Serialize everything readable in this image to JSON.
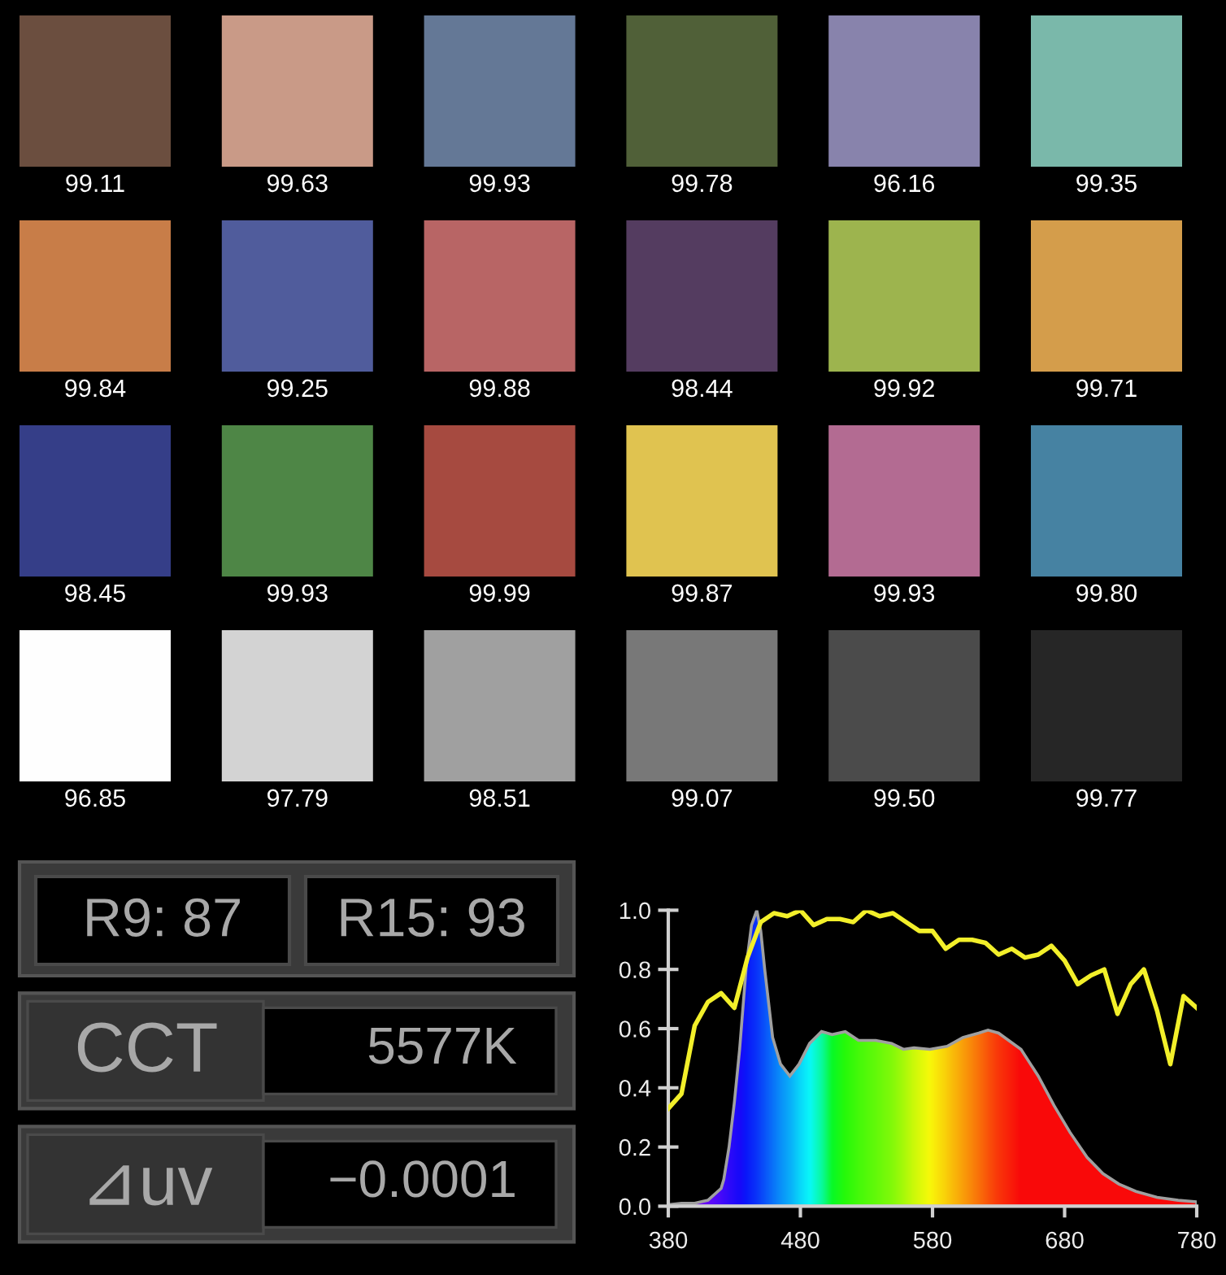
{
  "chart_data": [
    {
      "type": "other",
      "categories": [
        null,
        null,
        null,
        null,
        null,
        null,
        null,
        null,
        null,
        null,
        null,
        null,
        null,
        null,
        null,
        null,
        null,
        null,
        null,
        null,
        null,
        null,
        null,
        null
      ],
      "values": [
        99.11,
        99.63,
        99.93,
        99.78,
        96.16,
        99.35,
        99.84,
        99.25,
        99.88,
        98.44,
        99.92,
        99.71,
        98.45,
        99.93,
        99.99,
        99.87,
        99.93,
        99.8,
        96.85,
        97.79,
        98.51,
        99.07,
        99.5,
        99.77
      ],
      "value_labels": [
        "99.11",
        "99.63",
        "99.93",
        "99.78",
        "96.16",
        "99.35",
        "99.84",
        "99.25",
        "99.88",
        "98.44",
        "99.92",
        "99.71",
        "98.45",
        "99.93",
        "99.99",
        "99.87",
        "99.93",
        "99.80",
        "96.85",
        "97.79",
        "98.51",
        "99.07",
        "99.50",
        "99.77"
      ],
      "colors": [
        "#6b4e3f",
        "#c99a87",
        "#647896",
        "#506038",
        "#8883ac",
        "#7ab8aa",
        "#c87d48",
        "#505c9c",
        "#b86565",
        "#543c60",
        "#9db44e",
        "#d49d4b",
        "#353e88",
        "#4e8646",
        "#a64a40",
        "#e0c350",
        "#b36b92",
        "#4682a2",
        "#fefefe",
        "#d3d3d3",
        "#a0a0a0",
        "#787878",
        "#4b4b4b",
        "#262626"
      ]
    },
    {
      "type": "other",
      "annotations": [
        "R9: 87",
        "R15: 93",
        "CCT",
        "5577K",
        "⊿uv",
        "−0.0001"
      ]
    },
    {
      "type": "line",
      "xlim": [
        380,
        780
      ],
      "xticks": [
        380,
        480,
        580,
        680,
        780
      ],
      "ylim": [
        0,
        1
      ],
      "yticks": [
        {
          "value": 0,
          "label": "0.0"
        },
        {
          "value": 0.2,
          "label": "0.2"
        },
        {
          "value": 0.4,
          "label": "0.4"
        },
        {
          "value": 0.6,
          "label": "0.6"
        },
        {
          "value": 0.8,
          "label": "0.8"
        },
        {
          "value": 1,
          "label": "1.0"
        }
      ],
      "series": [
        {
          "type": "area",
          "color": "#a0a0a0",
          "x": [
            380,
            390,
            400,
            410,
            420,
            422,
            426,
            430,
            434,
            439,
            443,
            447,
            450,
            453,
            459,
            465,
            472,
            479,
            487,
            496,
            504,
            514,
            524,
            537,
            549,
            558,
            566,
            578,
            591,
            603,
            615,
            622,
            630,
            647,
            660,
            672,
            684,
            697,
            709,
            721,
            734,
            750,
            766,
            780
          ],
          "values": [
            0.005,
            0.01,
            0.01,
            0.02,
            0.06,
            0.09,
            0.2,
            0.35,
            0.53,
            0.81,
            0.95,
            1.0,
            0.93,
            0.8,
            0.57,
            0.48,
            0.44,
            0.48,
            0.55,
            0.59,
            0.58,
            0.59,
            0.56,
            0.56,
            0.55,
            0.53,
            0.535,
            0.53,
            0.54,
            0.57,
            0.585,
            0.595,
            0.585,
            0.53,
            0.44,
            0.34,
            0.25,
            0.165,
            0.11,
            0.075,
            0.05,
            0.03,
            0.02,
            0.015
          ],
          "colors": [
            "#b000d0",
            "#a000e0",
            "#8000ff",
            "#6000ff",
            "#4000ff",
            "#3800ff",
            "#2800ff",
            "#1a00ff",
            "#1000ff",
            "#0010ff",
            "#0020ff",
            "#0030ff",
            "#0040ff",
            "#0050ff",
            "#0070ff",
            "#0090ff",
            "#00b0ff",
            "#00d8ff",
            "#00ffff",
            "#00ffa0",
            "#00ff20",
            "#20ff00",
            "#40ff00",
            "#60ff00",
            "#80ff00",
            "#a8ff00",
            "#d0ff00",
            "#ffff00",
            "#ffd000",
            "#ffa000",
            "#ff7000",
            "#ff5000",
            "#ff3000",
            "#ff0000",
            "#ff0000",
            "#ff0000",
            "#ff0000",
            "#ff0000",
            "#ff0000",
            "#ff0000",
            "#ff0000",
            "#ff0000",
            "#ff0000",
            "#ff0000"
          ]
        },
        {
          "type": "line",
          "color": "#f2ef2a",
          "x": [
            380,
            390,
            400,
            410,
            420,
            430,
            440,
            450,
            460,
            470,
            480,
            490,
            500,
            510,
            520,
            530,
            540,
            550,
            560,
            570,
            580,
            590,
            600,
            610,
            620,
            630,
            640,
            650,
            660,
            670,
            680,
            690,
            700,
            710,
            720,
            730,
            740,
            750,
            760,
            770,
            780
          ],
          "values": [
            0.33,
            0.38,
            0.61,
            0.69,
            0.72,
            0.67,
            0.84,
            0.96,
            0.99,
            0.98,
            1.0,
            0.95,
            0.97,
            0.97,
            0.96,
            1.0,
            0.98,
            0.99,
            0.96,
            0.93,
            0.93,
            0.87,
            0.9,
            0.9,
            0.89,
            0.85,
            0.87,
            0.84,
            0.85,
            0.88,
            0.83,
            0.75,
            0.78,
            0.8,
            0.65,
            0.75,
            0.8,
            0.66,
            0.48,
            0.71,
            0.67
          ]
        }
      ]
    }
  ]
}
